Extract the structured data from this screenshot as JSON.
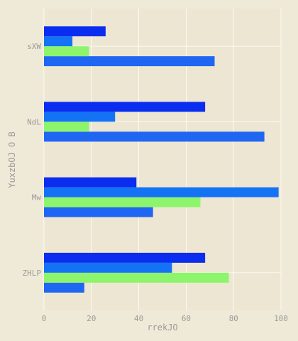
{
  "chart_data": {
    "type": "bar",
    "orientation": "horizontal",
    "title": "",
    "xlabel": "rrekJO",
    "ylabel": "YuxzbOJ O B",
    "xlim": [
      0,
      100
    ],
    "xticks": [
      0,
      20,
      40,
      60,
      80,
      100
    ],
    "grid": true,
    "legend": "none",
    "categories": [
      "ZHLP",
      "Mw",
      "NdL",
      "sXW"
    ],
    "series": [
      {
        "color": "#1f66f2",
        "values": [
          17,
          46,
          93,
          72
        ]
      },
      {
        "color": "#8cf56b",
        "values": [
          78,
          66,
          19,
          19
        ]
      },
      {
        "color": "#1473f5",
        "values": [
          54,
          99,
          30,
          12
        ]
      },
      {
        "color": "#0a2df0",
        "values": [
          68,
          39,
          68,
          26
        ]
      }
    ]
  }
}
